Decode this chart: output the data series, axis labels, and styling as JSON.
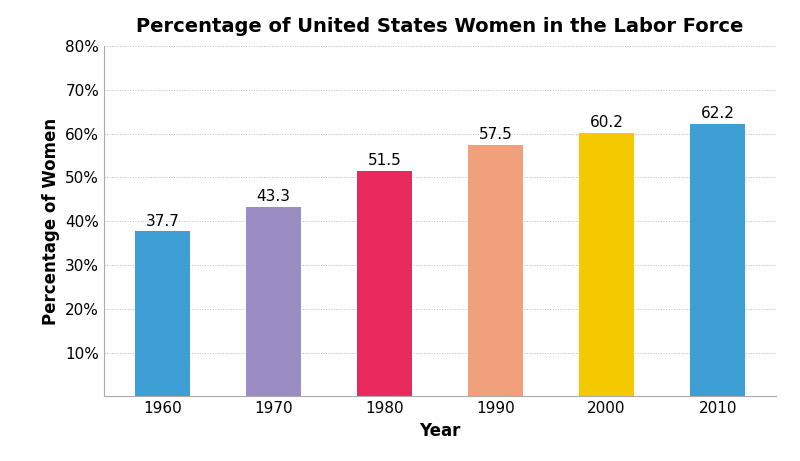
{
  "categories": [
    "1960",
    "1970",
    "1980",
    "1990",
    "2000",
    "2010"
  ],
  "values": [
    37.7,
    43.3,
    51.5,
    57.5,
    60.2,
    62.2
  ],
  "bar_colors": [
    "#3d9fd3",
    "#9b8dc4",
    "#e8295e",
    "#f0a07a",
    "#f5c900",
    "#3d9fd3"
  ],
  "title": "Percentage of United States Women in the Labor Force",
  "xlabel": "Year",
  "ylabel": "Percentage of Women",
  "ylim": [
    0,
    80
  ],
  "yticks": [
    10,
    20,
    30,
    40,
    50,
    60,
    70,
    80
  ],
  "title_fontsize": 14,
  "axis_label_fontsize": 12,
  "tick_fontsize": 11,
  "bar_label_fontsize": 11,
  "background_color": "#ffffff",
  "grid_color": "#bbbbbb"
}
